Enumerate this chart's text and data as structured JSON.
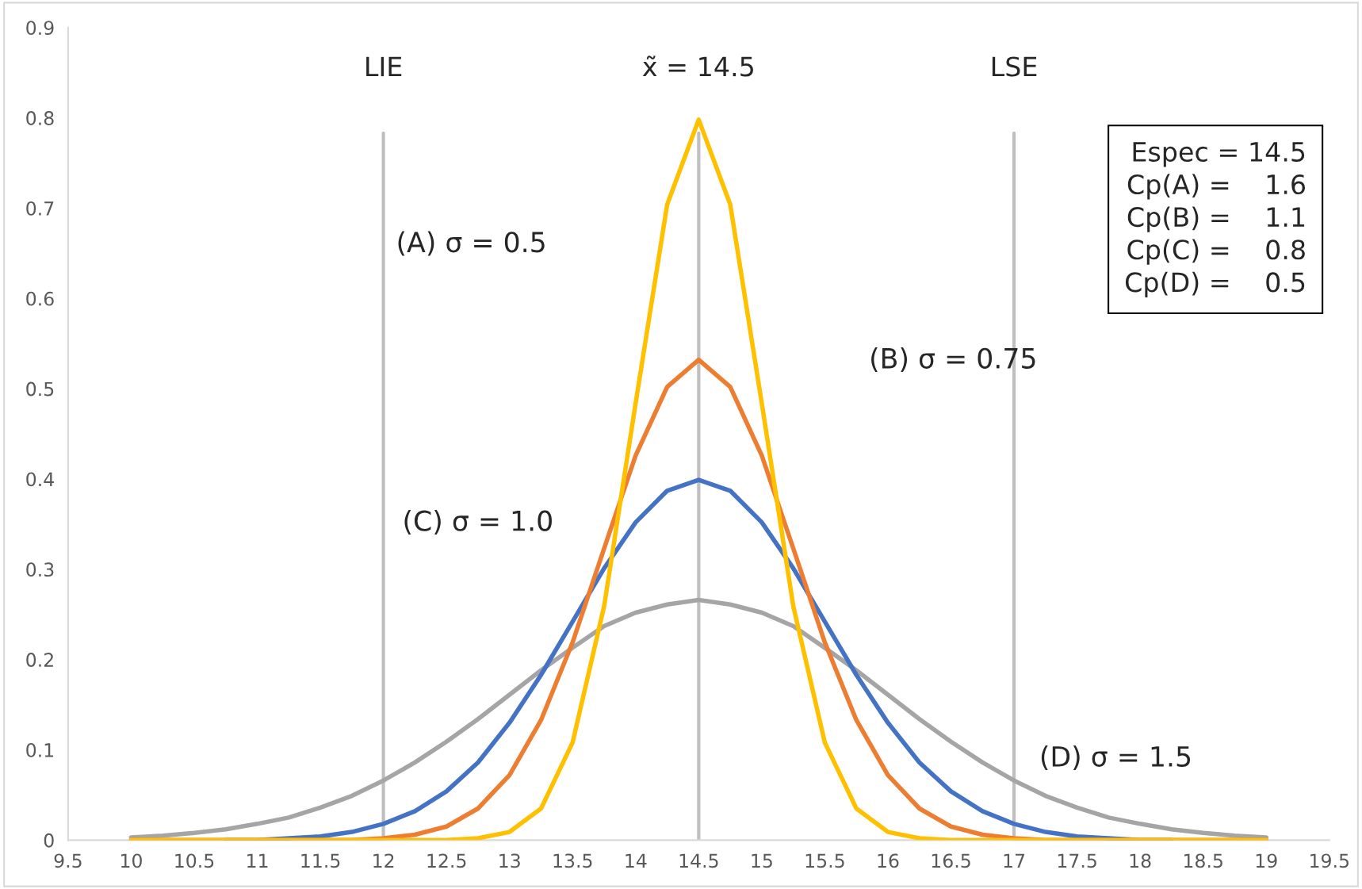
{
  "chart_data": {
    "type": "line",
    "x": [
      10,
      10.25,
      10.5,
      10.75,
      11,
      11.25,
      11.5,
      11.75,
      12,
      12.25,
      12.5,
      12.75,
      13,
      13.25,
      13.5,
      13.75,
      14,
      14.25,
      14.5,
      14.75,
      15,
      15.25,
      15.5,
      15.75,
      16,
      16.25,
      16.5,
      16.75,
      17,
      17.25,
      17.5,
      17.75,
      18,
      18.25,
      18.5,
      18.75,
      19
    ],
    "series": [
      {
        "color": "#ffc000",
        "values": [
          0,
          0,
          0,
          0,
          0,
          0,
          0,
          0,
          0,
          0,
          0,
          0.002,
          0.009,
          0.035,
          0.108,
          0.259,
          0.484,
          0.704,
          0.798,
          0.704,
          0.484,
          0.259,
          0.108,
          0.035,
          0.009,
          0.002,
          0,
          0,
          0,
          0,
          0,
          0,
          0,
          0,
          0,
          0,
          0
        ]
      },
      {
        "color": "#ed7d31",
        "values": [
          0,
          0,
          0,
          0,
          0,
          0,
          0,
          0,
          0.002,
          0.006,
          0.015,
          0.035,
          0.072,
          0.133,
          0.219,
          0.323,
          0.426,
          0.502,
          0.532,
          0.502,
          0.426,
          0.323,
          0.219,
          0.133,
          0.072,
          0.035,
          0.015,
          0.006,
          0.002,
          0,
          0,
          0,
          0,
          0,
          0,
          0,
          0
        ]
      },
      {
        "color": "#4472c4",
        "values": [
          null,
          null,
          null,
          0,
          0,
          0.002,
          0.004,
          0.009,
          0.018,
          0.032,
          0.054,
          0.086,
          0.13,
          0.183,
          0.242,
          0.301,
          0.352,
          0.387,
          0.399,
          0.387,
          0.352,
          0.301,
          0.242,
          0.183,
          0.13,
          0.086,
          0.054,
          0.032,
          0.018,
          0.009,
          0.004,
          0.002,
          0,
          0,
          null,
          null,
          null
        ]
      },
      {
        "color": "#a5a5a5",
        "values": [
          0.003,
          0.005,
          0.008,
          0.012,
          0.018,
          0.025,
          0.036,
          0.049,
          0.066,
          0.086,
          0.109,
          0.134,
          0.161,
          0.188,
          0.213,
          0.237,
          0.252,
          0.261,
          0.266,
          0.261,
          0.252,
          0.237,
          0.213,
          0.188,
          0.161,
          0.134,
          0.109,
          0.086,
          0.066,
          0.049,
          0.036,
          0.025,
          0.018,
          0.012,
          0.008,
          0.005,
          0.003
        ]
      }
    ],
    "xlim": [
      9.5,
      19.5
    ],
    "ylim": [
      0,
      0.9
    ],
    "xticks": [
      9.5,
      10,
      10.5,
      11,
      11.5,
      12,
      12.5,
      13,
      13.5,
      14,
      14.5,
      15,
      15.5,
      16,
      16.5,
      17,
      17.5,
      18,
      18.5,
      19,
      19.5
    ],
    "yticks": [
      0,
      0.1,
      0.2,
      0.3,
      0.4,
      0.5,
      0.6,
      0.7,
      0.8,
      0.9
    ],
    "ref_lines": [
      {
        "axis": "x",
        "value": 12,
        "label": "LIE",
        "color": "#bfbfbf"
      },
      {
        "axis": "x",
        "value": 14.5,
        "label": "x̃ = 14.5",
        "color": "#bfbfbf"
      },
      {
        "axis": "x",
        "value": 17,
        "label": "LSE",
        "color": "#bfbfbf"
      }
    ],
    "annotations": [
      "(A) σ = 0.5",
      "(B) σ = 0.75",
      "(C) σ = 1.0",
      "(D) σ = 1.5",
      "Espec = 14.5\nCp(A) =    1.6\nCp(B) =    1.1\nCp(C) =    0.8\nCp(D) =    0.5"
    ],
    "grid": false,
    "legend": false,
    "marker": "none",
    "line_style": "solid"
  }
}
